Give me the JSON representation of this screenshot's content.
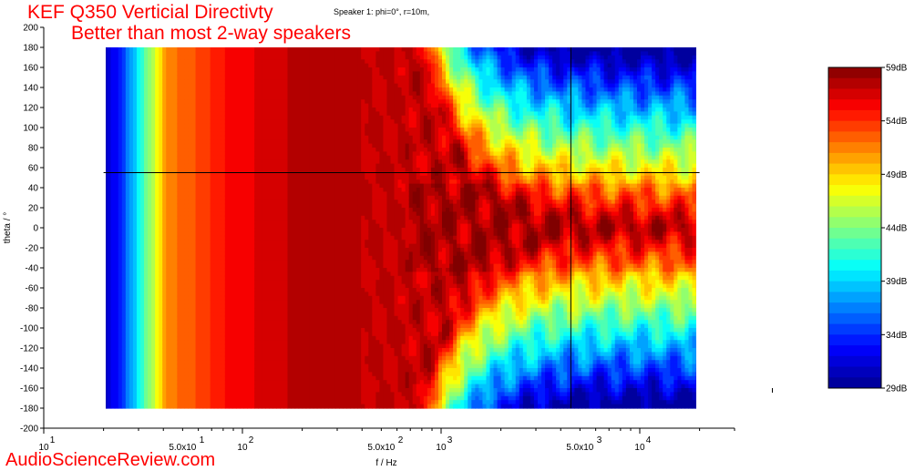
{
  "header": {
    "title": "KEF Q350 Verticial Directivty",
    "subtitle": "Better than most 2-way speakers",
    "info": "Speaker 1: phi=0°, r=10m,"
  },
  "watermark": "AudioScienceReview.com",
  "chart_data": {
    "type": "heatmap",
    "xlabel": "f / Hz",
    "ylabel": "theta / °",
    "xscale": "log",
    "xlim": [
      10,
      30000
    ],
    "ylim": [
      -200,
      200
    ],
    "data_x_range": [
      20,
      20000
    ],
    "data_y_range": [
      -180,
      180
    ],
    "y_ticks": [
      200,
      180,
      160,
      140,
      120,
      100,
      80,
      60,
      40,
      20,
      0,
      -20,
      -40,
      -60,
      -80,
      -100,
      -120,
      -140,
      -160,
      -180,
      -200
    ],
    "x_tick_labels": [
      {
        "value": 10,
        "base": "10",
        "exp": "1"
      },
      {
        "value": 50,
        "base": "5.0x10",
        "exp": "1"
      },
      {
        "value": 100,
        "base": "10",
        "exp": "2"
      },
      {
        "value": 500,
        "base": "5.0x10",
        "exp": "2"
      },
      {
        "value": 1000,
        "base": "10",
        "exp": "3"
      },
      {
        "value": 5000,
        "base": "5.0x10",
        "exp": "3"
      },
      {
        "value": 10000,
        "base": "10",
        "exp": "4"
      }
    ],
    "cursor": {
      "x": 4500,
      "y": 55
    },
    "colorbar": {
      "min": 29,
      "max": 59,
      "labels": [
        "59dB",
        "54dB",
        "49dB",
        "44dB",
        "39dB",
        "34dB",
        "29dB"
      ]
    }
  }
}
